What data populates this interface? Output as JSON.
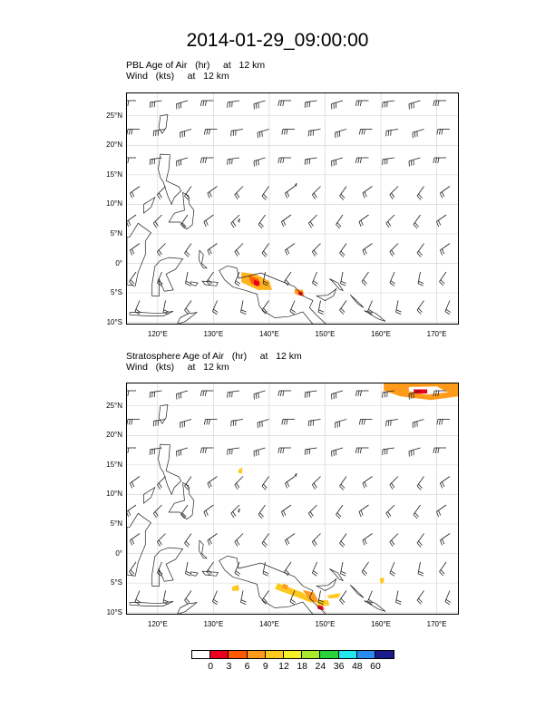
{
  "title": "2014-01-29_09:00:00",
  "panels": [
    {
      "line1": "PBL Age of Air   (hr)     at   12 km",
      "line2": "Wind   (kts)     at   12 km",
      "lat_labels": [
        "25°N",
        "20°N",
        "15°N",
        "10°N",
        "5°N",
        "0°",
        "5°S",
        "10°S"
      ],
      "lon_labels": [
        "120°E",
        "130°E",
        "140°E",
        "150°E",
        "160°E",
        "170°E"
      ]
    },
    {
      "line1": "Stratosphere Age of Air   (hr)     at   12 km",
      "line2": "Wind   (kts)     at   12 km",
      "lat_labels": [
        "25°N",
        "20°N",
        "15°N",
        "10°N",
        "5°N",
        "0°",
        "5°S",
        "10°S"
      ],
      "lon_labels": [
        "120°E",
        "130°E",
        "140°E",
        "150°E",
        "160°E",
        "170°E"
      ]
    }
  ],
  "colorbar": {
    "labels": [
      "0",
      "3",
      "6",
      "9",
      "12",
      "18",
      "24",
      "36",
      "48",
      "60"
    ],
    "colors": [
      "#ffffff",
      "#e8001c",
      "#ff5a00",
      "#ff9a1a",
      "#ffc81e",
      "#f5f028",
      "#a8ea2d",
      "#2ad23c",
      "#22e6f0",
      "#2b8cf0",
      "#1a1a8a"
    ]
  }
}
